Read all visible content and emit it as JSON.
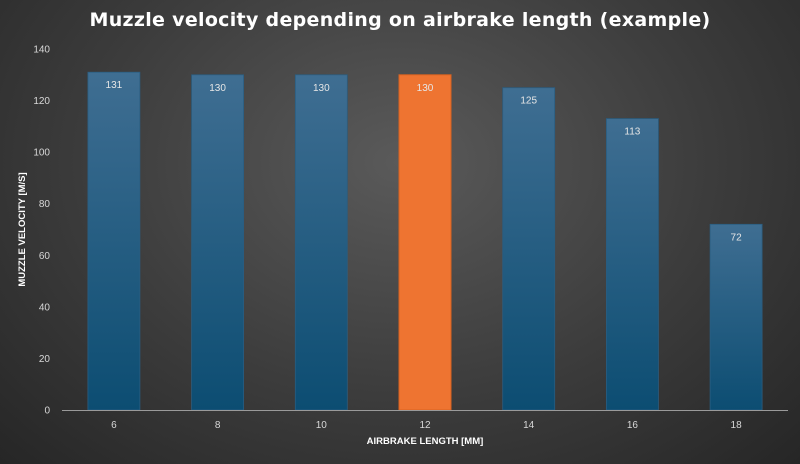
{
  "chart_data": {
    "type": "bar",
    "title": "Muzzle velocity depending on airbrake length (example)",
    "xlabel": "AIRBRAKE LENGTH [MM]",
    "ylabel": "MUZZLE VELOCITY [M/S]",
    "categories": [
      "6",
      "8",
      "10",
      "12",
      "14",
      "16",
      "18"
    ],
    "values": [
      131,
      130,
      130,
      130,
      125,
      113,
      72
    ],
    "data_labels": [
      "131",
      "130",
      "130",
      "130",
      "125",
      "113",
      "72"
    ],
    "highlight_index": 3,
    "ylim": [
      0,
      140
    ],
    "yticks": [
      0,
      20,
      40,
      60,
      80,
      100,
      120,
      140
    ],
    "grid": false,
    "legend": "none",
    "colors": {
      "bar_top": "#3f6e92",
      "bar_bottom": "#0c4d72",
      "highlight": "#ee7431",
      "highlight_edge": "#d9621f",
      "axis_line": "#9a9a9a",
      "text": "#ffffff",
      "tick_text": "#d8d8d8"
    }
  }
}
